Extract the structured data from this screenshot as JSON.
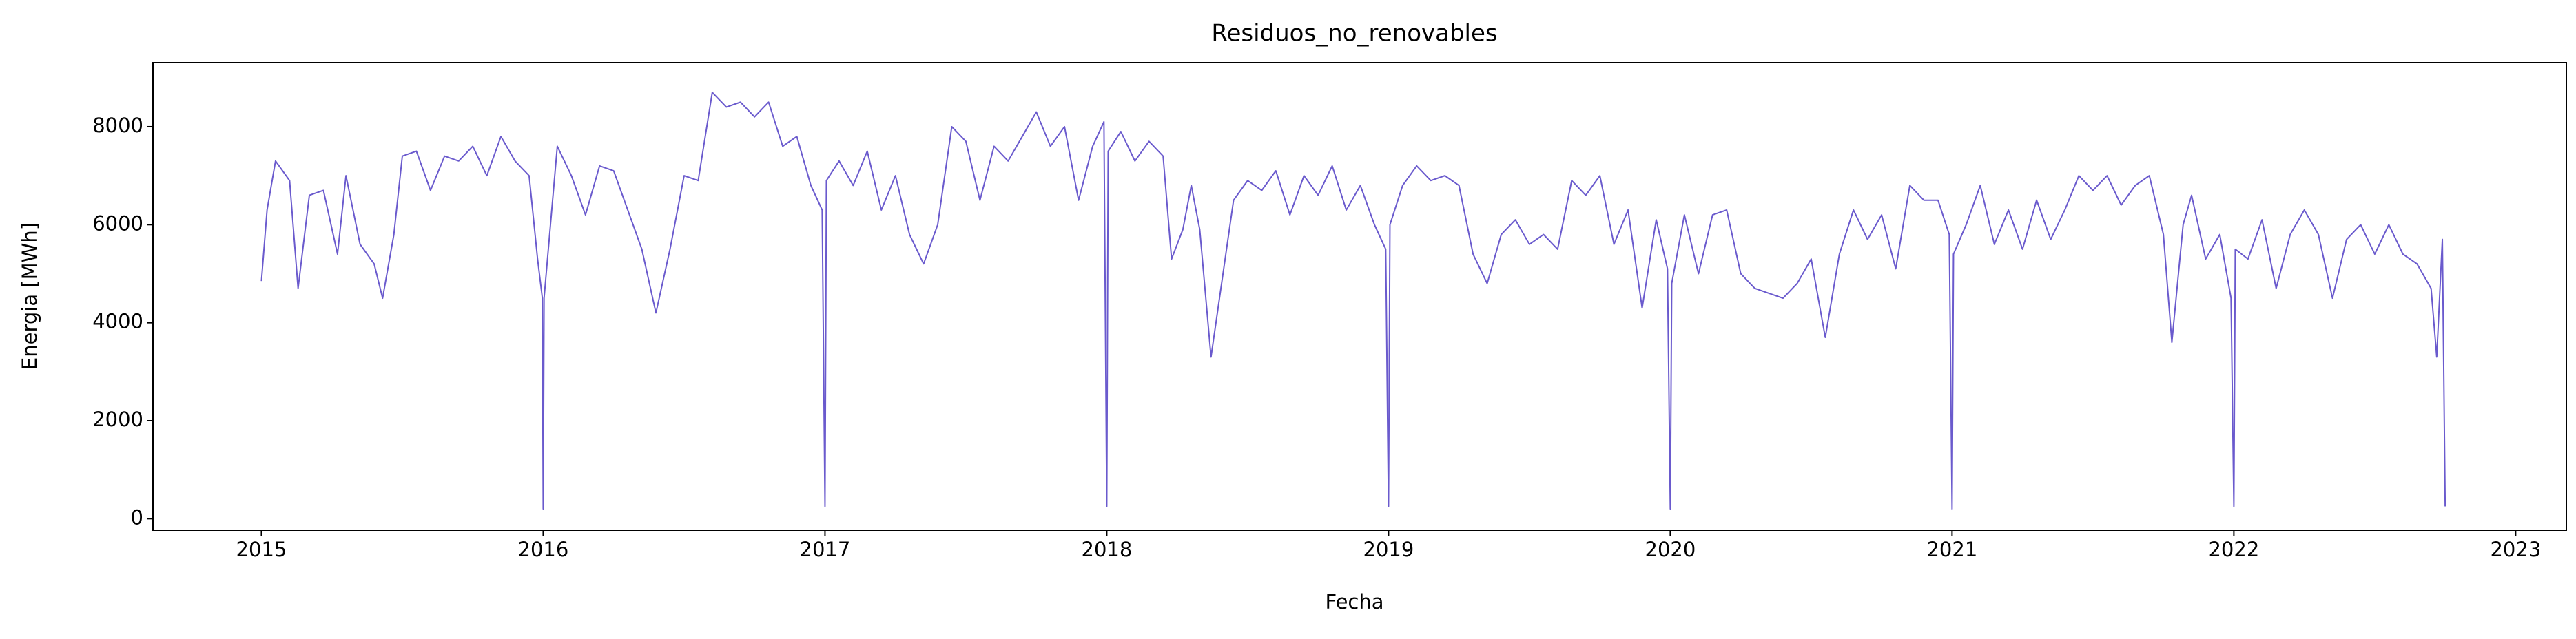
{
  "chart_data": {
    "type": "line",
    "title": "Residuos_no_renovables",
    "x_label": "Fecha",
    "y_label": "Energia [MWh]",
    "xlim": [
      2014.615,
      2023.18
    ],
    "ylim": [
      -234,
      9306
    ],
    "xticks": [
      2015,
      2016,
      2017,
      2018,
      2019,
      2020,
      2021,
      2022,
      2023
    ],
    "yticks": [
      0,
      2000,
      4000,
      6000,
      8000
    ],
    "grid": false,
    "x": [
      2015.0,
      2015.02,
      2015.05,
      2015.1,
      2015.13,
      2015.17,
      2015.22,
      2015.27,
      2015.3,
      2015.35,
      2015.4,
      2015.43,
      2015.47,
      2015.5,
      2015.55,
      2015.6,
      2015.65,
      2015.7,
      2015.75,
      2015.8,
      2015.85,
      2015.9,
      2015.95,
      2015.98,
      2015.997,
      2016.0,
      2016.003,
      2016.05,
      2016.1,
      2016.15,
      2016.2,
      2016.25,
      2016.3,
      2016.35,
      2016.4,
      2016.45,
      2016.5,
      2016.55,
      2016.6,
      2016.65,
      2016.7,
      2016.75,
      2016.8,
      2016.85,
      2016.9,
      2016.95,
      2016.99,
      2017.0,
      2017.005,
      2017.05,
      2017.1,
      2017.15,
      2017.2,
      2017.25,
      2017.3,
      2017.35,
      2017.4,
      2017.45,
      2017.5,
      2017.55,
      2017.6,
      2017.65,
      2017.7,
      2017.75,
      2017.8,
      2017.85,
      2017.9,
      2017.95,
      2017.99,
      2018.0,
      2018.005,
      2018.05,
      2018.1,
      2018.15,
      2018.2,
      2018.23,
      2018.27,
      2018.3,
      2018.33,
      2018.37,
      2018.4,
      2018.45,
      2018.5,
      2018.55,
      2018.6,
      2018.65,
      2018.7,
      2018.75,
      2018.8,
      2018.85,
      2018.9,
      2018.95,
      2018.99,
      2019.0,
      2019.005,
      2019.05,
      2019.1,
      2019.15,
      2019.2,
      2019.25,
      2019.3,
      2019.35,
      2019.4,
      2019.45,
      2019.5,
      2019.55,
      2019.6,
      2019.65,
      2019.7,
      2019.75,
      2019.8,
      2019.85,
      2019.9,
      2019.95,
      2019.99,
      2020.0,
      2020.005,
      2020.05,
      2020.1,
      2020.15,
      2020.2,
      2020.25,
      2020.3,
      2020.35,
      2020.4,
      2020.45,
      2020.5,
      2020.55,
      2020.6,
      2020.65,
      2020.7,
      2020.75,
      2020.8,
      2020.85,
      2020.9,
      2020.95,
      2020.99,
      2021.0,
      2021.005,
      2021.05,
      2021.1,
      2021.15,
      2021.2,
      2021.25,
      2021.3,
      2021.35,
      2021.4,
      2021.45,
      2021.5,
      2021.55,
      2021.6,
      2021.65,
      2021.7,
      2021.75,
      2021.78,
      2021.82,
      2021.85,
      2021.9,
      2021.95,
      2021.99,
      2022.0,
      2022.005,
      2022.05,
      2022.1,
      2022.15,
      2022.2,
      2022.25,
      2022.3,
      2022.35,
      2022.4,
      2022.45,
      2022.5,
      2022.55,
      2022.6,
      2022.65,
      2022.7,
      2022.72,
      2022.74,
      2022.75
    ],
    "series": [
      {
        "name": "Residuos_no_renovables",
        "color": "#6a5acd",
        "values": [
          4850,
          6300,
          7300,
          6900,
          4700,
          6600,
          6700,
          5400,
          7000,
          5600,
          5200,
          4500,
          5800,
          7400,
          7500,
          6700,
          7400,
          7300,
          7600,
          7000,
          7800,
          7300,
          7000,
          5300,
          4500,
          200,
          4500,
          7600,
          7000,
          6200,
          7200,
          7100,
          6300,
          5500,
          4200,
          5500,
          7000,
          6900,
          8700,
          8400,
          8500,
          8200,
          8500,
          7600,
          7800,
          6800,
          6300,
          250,
          6900,
          7300,
          6800,
          7500,
          6300,
          7000,
          5800,
          5200,
          6000,
          8000,
          7700,
          6500,
          7600,
          7300,
          7800,
          8300,
          7600,
          8000,
          6500,
          7600,
          8100,
          250,
          7500,
          7900,
          7300,
          7700,
          7400,
          5300,
          5900,
          6800,
          5900,
          3300,
          4500,
          6500,
          6900,
          6700,
          7100,
          6200,
          7000,
          6600,
          7200,
          6300,
          6800,
          6000,
          5500,
          250,
          6000,
          6800,
          7200,
          6900,
          7000,
          6800,
          5400,
          4800,
          5800,
          6100,
          5600,
          5800,
          5500,
          6900,
          6600,
          7000,
          5600,
          6300,
          4300,
          6100,
          5100,
          200,
          4800,
          6200,
          5000,
          6200,
          6300,
          5000,
          4700,
          4600,
          4500,
          4800,
          5300,
          3700,
          5400,
          6300,
          5700,
          6200,
          5100,
          6800,
          6500,
          6500,
          5800,
          200,
          5400,
          6000,
          6800,
          5600,
          6300,
          5500,
          6500,
          5700,
          6300,
          7000,
          6700,
          7000,
          6400,
          6800,
          7000,
          5800,
          3600,
          6000,
          6600,
          5300,
          5800,
          4500,
          250,
          5500,
          5300,
          6100,
          4700,
          5800,
          6300,
          5800,
          4500,
          5700,
          6000,
          5400,
          6000,
          5400,
          5200,
          4700,
          3300,
          5700,
          250
        ]
      }
    ]
  }
}
